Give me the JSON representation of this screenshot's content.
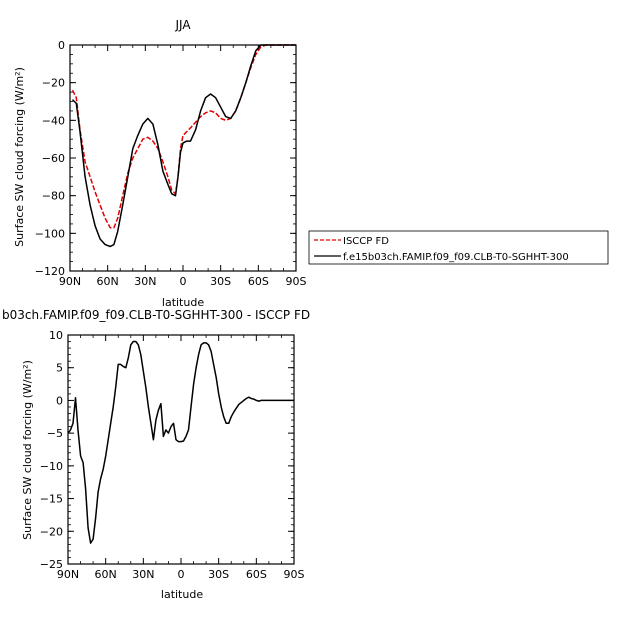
{
  "chart_data": [
    {
      "type": "line",
      "title": "JJA",
      "xlabel": "latitude",
      "ylabel": "Surface SW cloud forcing (W/m²)",
      "xlim": [
        90,
        -90
      ],
      "ylim": [
        -120,
        0
      ],
      "x_ticks": [
        90,
        60,
        30,
        0,
        -30,
        -60,
        -90
      ],
      "x_tick_labels": [
        "90N",
        "60N",
        "30N",
        "0",
        "30S",
        "60S",
        "90S"
      ],
      "y_ticks": [
        0,
        -20,
        -40,
        -60,
        -80,
        -100,
        -120
      ],
      "y_tick_labels": [
        "0",
        "−20",
        "−40",
        "−60",
        "−80",
        "−100",
        "−120"
      ],
      "legend_position": "right",
      "series": [
        {
          "name": "ISCCP FD",
          "color": "#e00000",
          "dash": "dashed",
          "x": [
            88,
            85,
            82,
            78,
            74,
            70,
            66,
            62,
            58,
            55,
            52,
            48,
            44,
            40,
            36,
            32,
            28,
            24,
            20,
            16,
            12,
            9,
            6,
            4,
            2,
            0,
            -3,
            -6,
            -10,
            -14,
            -18,
            -22,
            -26,
            -30,
            -34,
            -38,
            -42,
            -46,
            -50,
            -54,
            -58,
            -62,
            -66,
            -70,
            -75,
            -80,
            -85,
            -90
          ],
          "values": [
            -24,
            -28,
            -45,
            -62,
            -70,
            -78,
            -85,
            -92,
            -97,
            -97,
            -92,
            -80,
            -68,
            -60,
            -55,
            -50,
            -49,
            -51,
            -55,
            -62,
            -70,
            -77,
            -79,
            -70,
            -55,
            -48,
            -46,
            -44,
            -41,
            -38,
            -36,
            -35,
            -36,
            -39,
            -40,
            -39,
            -35,
            -28,
            -20,
            -12,
            -5,
            -1,
            0,
            0,
            0,
            0,
            0,
            0
          ]
        },
        {
          "name": "f.e15b03ch.FAMIP.f09_f09.CLB-T0-SGHHT-300",
          "color": "#000000",
          "dash": "solid",
          "x": [
            88,
            85,
            82,
            78,
            74,
            70,
            66,
            62,
            58,
            55,
            52,
            48,
            44,
            40,
            36,
            32,
            28,
            24,
            20,
            16,
            12,
            9,
            6,
            4,
            2,
            0,
            -3,
            -6,
            -10,
            -14,
            -18,
            -22,
            -26,
            -30,
            -34,
            -38,
            -42,
            -46,
            -50,
            -54,
            -58,
            -62,
            -66,
            -70,
            -75,
            -80,
            -85,
            -90
          ],
          "values": [
            -29,
            -31,
            -46,
            -70,
            -85,
            -96,
            -103,
            -106,
            -107,
            -106,
            -99,
            -85,
            -70,
            -55,
            -48,
            -42,
            -39,
            -42,
            -53,
            -67,
            -74,
            -79,
            -80,
            -70,
            -57,
            -52,
            -51,
            -51,
            -45,
            -35,
            -28,
            -26,
            -28,
            -33,
            -38,
            -39,
            -35,
            -28,
            -20,
            -11,
            -3,
            0,
            0,
            0,
            0,
            0,
            0,
            0
          ]
        }
      ]
    },
    {
      "type": "line",
      "title": "b03ch.FAMIP.f09_f09.CLB-T0-SGHHT-300 - ISCCP FD",
      "xlabel": "latitude",
      "ylabel": "Surface SW cloud forcing (W/m²)",
      "xlim": [
        90,
        -90
      ],
      "ylim": [
        -25,
        10
      ],
      "x_ticks": [
        90,
        60,
        30,
        0,
        -30,
        -60,
        -90
      ],
      "x_tick_labels": [
        "90N",
        "60N",
        "30N",
        "0",
        "30S",
        "60S",
        "90S"
      ],
      "y_ticks": [
        10,
        5,
        0,
        -5,
        -10,
        -15,
        -20,
        -25
      ],
      "y_tick_labels": [
        "10",
        "5",
        "0",
        "−5",
        "−10",
        "−15",
        "−20",
        "−25"
      ],
      "series": [
        {
          "color": "#000000",
          "dash": "solid",
          "x": [
            90,
            88,
            86,
            84,
            82,
            80,
            78,
            76,
            74,
            72,
            70,
            68,
            66,
            64,
            62,
            60,
            58,
            56,
            54,
            52,
            50,
            48,
            46,
            44,
            42,
            40,
            38,
            36,
            34,
            32,
            30,
            28,
            26,
            24,
            22,
            20,
            18,
            16,
            14,
            12,
            10,
            8,
            6,
            4,
            2,
            0,
            -2,
            -4,
            -6,
            -8,
            -10,
            -12,
            -14,
            -16,
            -18,
            -20,
            -22,
            -24,
            -26,
            -28,
            -30,
            -32,
            -34,
            -36,
            -38,
            -40,
            -42,
            -44,
            -46,
            -48,
            -50,
            -52,
            -54,
            -56,
            -58,
            -60,
            -62,
            -64,
            -66,
            -68,
            -70,
            -72,
            -74,
            -76,
            -78,
            -80,
            -82,
            -84,
            -86,
            -88,
            -90
          ],
          "values": [
            -5,
            -4.5,
            -3.5,
            0.4,
            -4.5,
            -8.5,
            -9.5,
            -13.5,
            -19.5,
            -21.8,
            -21.2,
            -18,
            -14,
            -12,
            -10.5,
            -8.5,
            -6,
            -3.5,
            -1,
            2,
            5.5,
            5.5,
            5.2,
            5,
            6.5,
            8.5,
            9,
            9,
            8.5,
            7,
            4.5,
            2,
            -1,
            -3.5,
            -6,
            -3,
            -1.5,
            -0.5,
            -5.5,
            -4.5,
            -5,
            -4,
            -3.5,
            -6,
            -6.3,
            -6.3,
            -6.2,
            -5.5,
            -4.5,
            -1,
            2.5,
            5,
            7,
            8.5,
            8.8,
            8.8,
            8.5,
            7.5,
            5.5,
            3.5,
            1,
            -1,
            -2.5,
            -3.5,
            -3.5,
            -2.5,
            -1.8,
            -1.2,
            -0.6,
            -0.3,
            0,
            0.3,
            0.5,
            0.3,
            0.2,
            0,
            -0.1,
            0,
            0,
            0,
            0,
            0,
            0,
            0,
            0,
            0,
            0,
            0,
            0,
            0,
            0
          ]
        }
      ]
    }
  ]
}
